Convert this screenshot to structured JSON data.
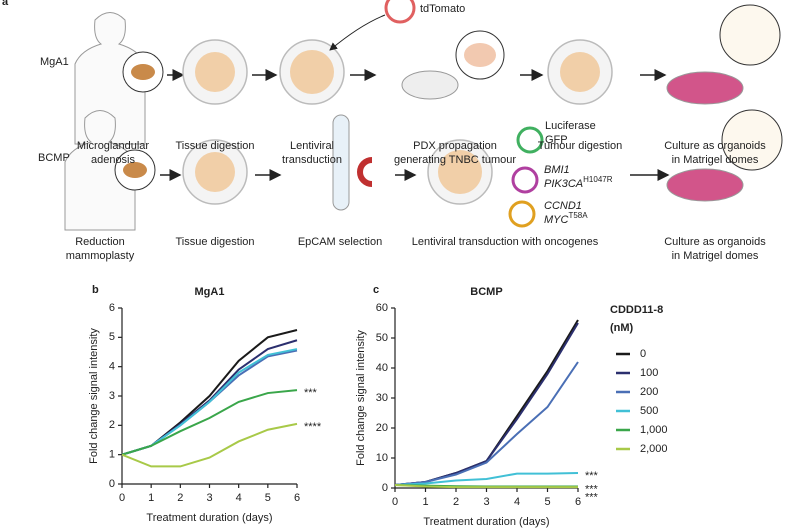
{
  "panel_labels": [
    "a",
    "b",
    "c"
  ],
  "workflow": {
    "rows": [
      {
        "label": "MgA1",
        "steps": [
          [
            "Microglandular",
            "adenosis"
          ],
          [
            "Tissue digestion"
          ],
          [
            "Lentiviral",
            "transduction"
          ],
          [
            "PDX propagation",
            "generating TNBC tumour"
          ],
          [
            "Tumour digestion"
          ],
          [
            "Culture as organoids",
            "in Matrigel domes"
          ]
        ]
      },
      {
        "label": "BCMP",
        "steps": [
          [
            "Reduction",
            "mammoplasty"
          ],
          [
            "Tissue digestion"
          ],
          [
            "EpCAM selection"
          ],
          [
            "Lentiviral transduction with oncogenes"
          ],
          [
            "Culture as organoids",
            "in Matrigel domes"
          ]
        ]
      }
    ],
    "reporter_1": "tdTomato",
    "reporters_2": [
      [
        "Luciferase"
      ],
      [
        "GFP"
      ]
    ],
    "oncogenes": [
      [
        {
          "text": "BMI1"
        }
      ],
      [
        {
          "text": "PIK3CA",
          "sup": "H1047R"
        }
      ],
      [
        {
          "text": "CCND1"
        }
      ],
      [
        {
          "text": "MYC",
          "sup": "T58A"
        }
      ]
    ]
  },
  "chart_data": [
    {
      "type": "line",
      "title": "MgA1",
      "x_label": "Treatment duration (days)",
      "y_label": "Fold change signal intensity",
      "x": [
        0,
        1,
        2,
        3,
        4,
        5,
        6
      ],
      "xlim": [
        0,
        6
      ],
      "xticks": [
        0,
        1,
        2,
        3,
        4,
        5,
        6
      ],
      "ylim": [
        0,
        6
      ],
      "yticks": [
        0,
        1,
        2,
        3,
        4,
        5,
        6
      ],
      "series": [
        {
          "name": "0",
          "color": "#1a1a1a",
          "values": [
            1,
            1.3,
            2.1,
            3.0,
            4.2,
            5.0,
            5.25
          ]
        },
        {
          "name": "100",
          "color": "#2b2f6e",
          "values": [
            1,
            1.3,
            2.05,
            2.85,
            3.9,
            4.6,
            4.9
          ]
        },
        {
          "name": "200",
          "color": "#4a6fb5",
          "values": [
            1,
            1.3,
            2.0,
            2.8,
            3.7,
            4.35,
            4.55
          ]
        },
        {
          "name": "500",
          "color": "#41c0d6",
          "values": [
            1,
            1.3,
            2.0,
            2.8,
            3.8,
            4.4,
            4.6
          ]
        },
        {
          "name": "1,000",
          "color": "#3aa64a",
          "values": [
            1,
            1.3,
            1.8,
            2.25,
            2.8,
            3.1,
            3.2
          ],
          "annotation": "***"
        },
        {
          "name": "2,000",
          "color": "#a8c948",
          "values": [
            1,
            0.6,
            0.6,
            0.9,
            1.45,
            1.85,
            2.05
          ],
          "annotation": "****"
        }
      ]
    },
    {
      "type": "line",
      "title": "BCMP",
      "x_label": "Treatment duration (days)",
      "y_label": "Fold change signal intensity",
      "legend_title": [
        "CDDD11-8",
        "(nM)"
      ],
      "x": [
        0,
        1,
        2,
        3,
        4,
        5,
        6
      ],
      "xlim": [
        0,
        6
      ],
      "xticks": [
        0,
        1,
        2,
        3,
        4,
        5,
        6
      ],
      "ylim": [
        0,
        60
      ],
      "yticks": [
        0,
        10,
        20,
        30,
        40,
        50,
        60
      ],
      "series": [
        {
          "name": "0",
          "color": "#1a1a1a",
          "values": [
            1,
            2,
            5,
            9,
            24,
            39,
            56
          ]
        },
        {
          "name": "100",
          "color": "#2b2f6e",
          "values": [
            1,
            2,
            5,
            9,
            23,
            38,
            55
          ]
        },
        {
          "name": "200",
          "color": "#4a6fb5",
          "values": [
            1,
            2,
            4.5,
            8.5,
            18,
            27,
            42
          ]
        },
        {
          "name": "500",
          "color": "#41c0d6",
          "values": [
            1,
            1.5,
            2.5,
            3,
            4.8,
            4.8,
            5
          ],
          "annotation": "***"
        },
        {
          "name": "1,000",
          "color": "#3aa64a",
          "values": [
            1,
            0.8,
            0.6,
            0.5,
            0.5,
            0.5,
            0.5
          ],
          "annotation": "***"
        },
        {
          "name": "2,000",
          "color": "#a8c948",
          "values": [
            1,
            0.5,
            0.3,
            0.3,
            0.3,
            0.3,
            0.3
          ],
          "annotation": "***"
        }
      ]
    }
  ]
}
